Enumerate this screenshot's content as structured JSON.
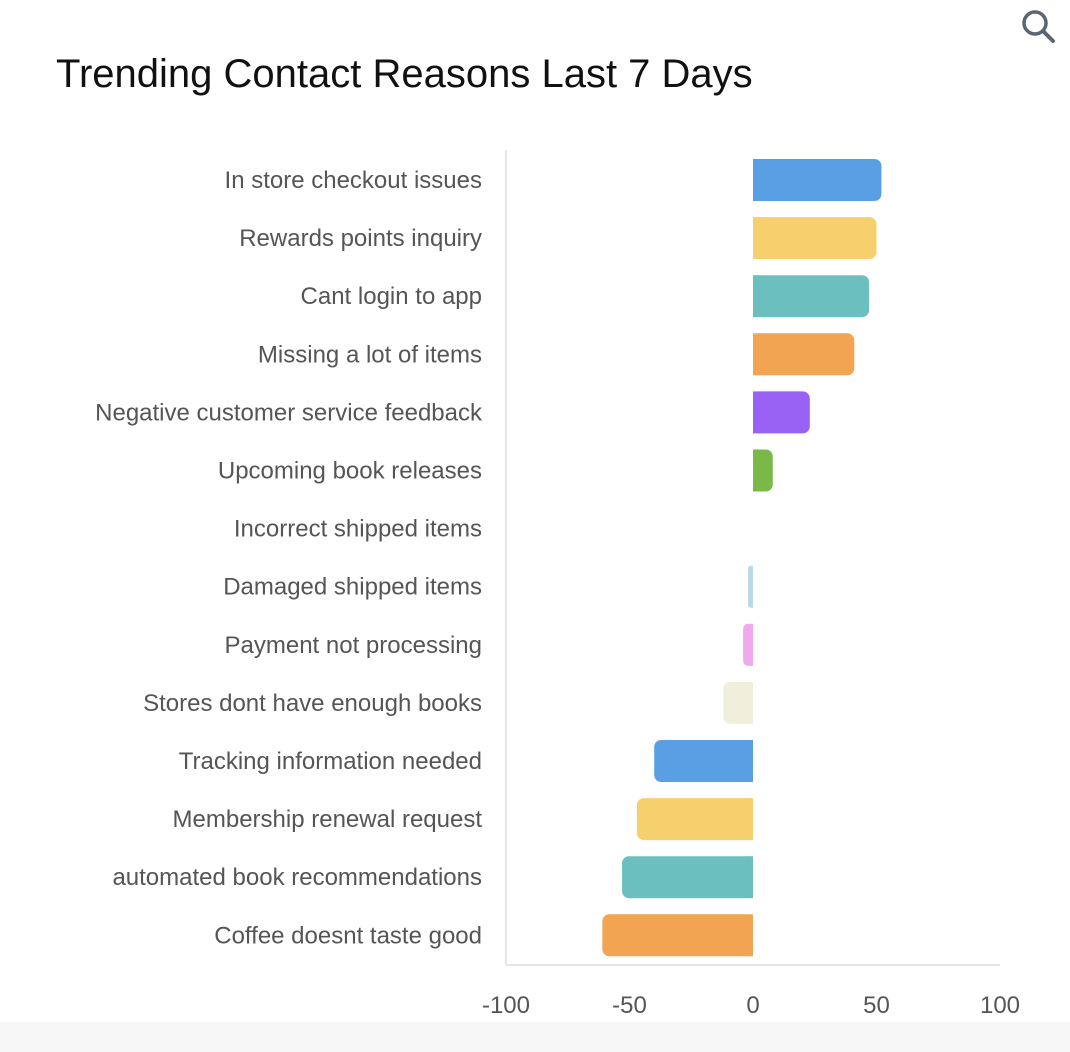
{
  "header": {
    "search_icon": "search-icon"
  },
  "chart_data": {
    "type": "bar",
    "orientation": "horizontal",
    "title": "Trending Contact Reasons Last 7 Days",
    "categories": [
      "In store checkout issues",
      "Rewards points inquiry",
      "Cant login to app",
      "Missing a lot of items",
      "Negative customer service feedback",
      "Upcoming book releases",
      "Incorrect shipped items",
      "Damaged shipped items",
      "Payment not processing",
      "Stores dont have enough books",
      "Tracking information needed",
      "Membership renewal request",
      "automated book recommendations",
      "Coffee doesnt taste good"
    ],
    "values": [
      52,
      50,
      47,
      41,
      23,
      8,
      0,
      -2,
      -4,
      -12,
      -40,
      -47,
      -53,
      -61
    ],
    "colors": [
      "#5a9fe3",
      "#f6d06c",
      "#6cbfbf",
      "#f2a453",
      "#9a62f4",
      "#7ab84a",
      "#cccccc",
      "#b9d9ea",
      "#f0a8ee",
      "#efefdc",
      "#5a9fe3",
      "#f6d06c",
      "#6cbfbf",
      "#f2a453"
    ],
    "xlim": [
      -100,
      100
    ],
    "xticks": [
      "-100",
      "-50",
      "0",
      "50",
      "100"
    ],
    "grid": false,
    "legend": "none"
  }
}
